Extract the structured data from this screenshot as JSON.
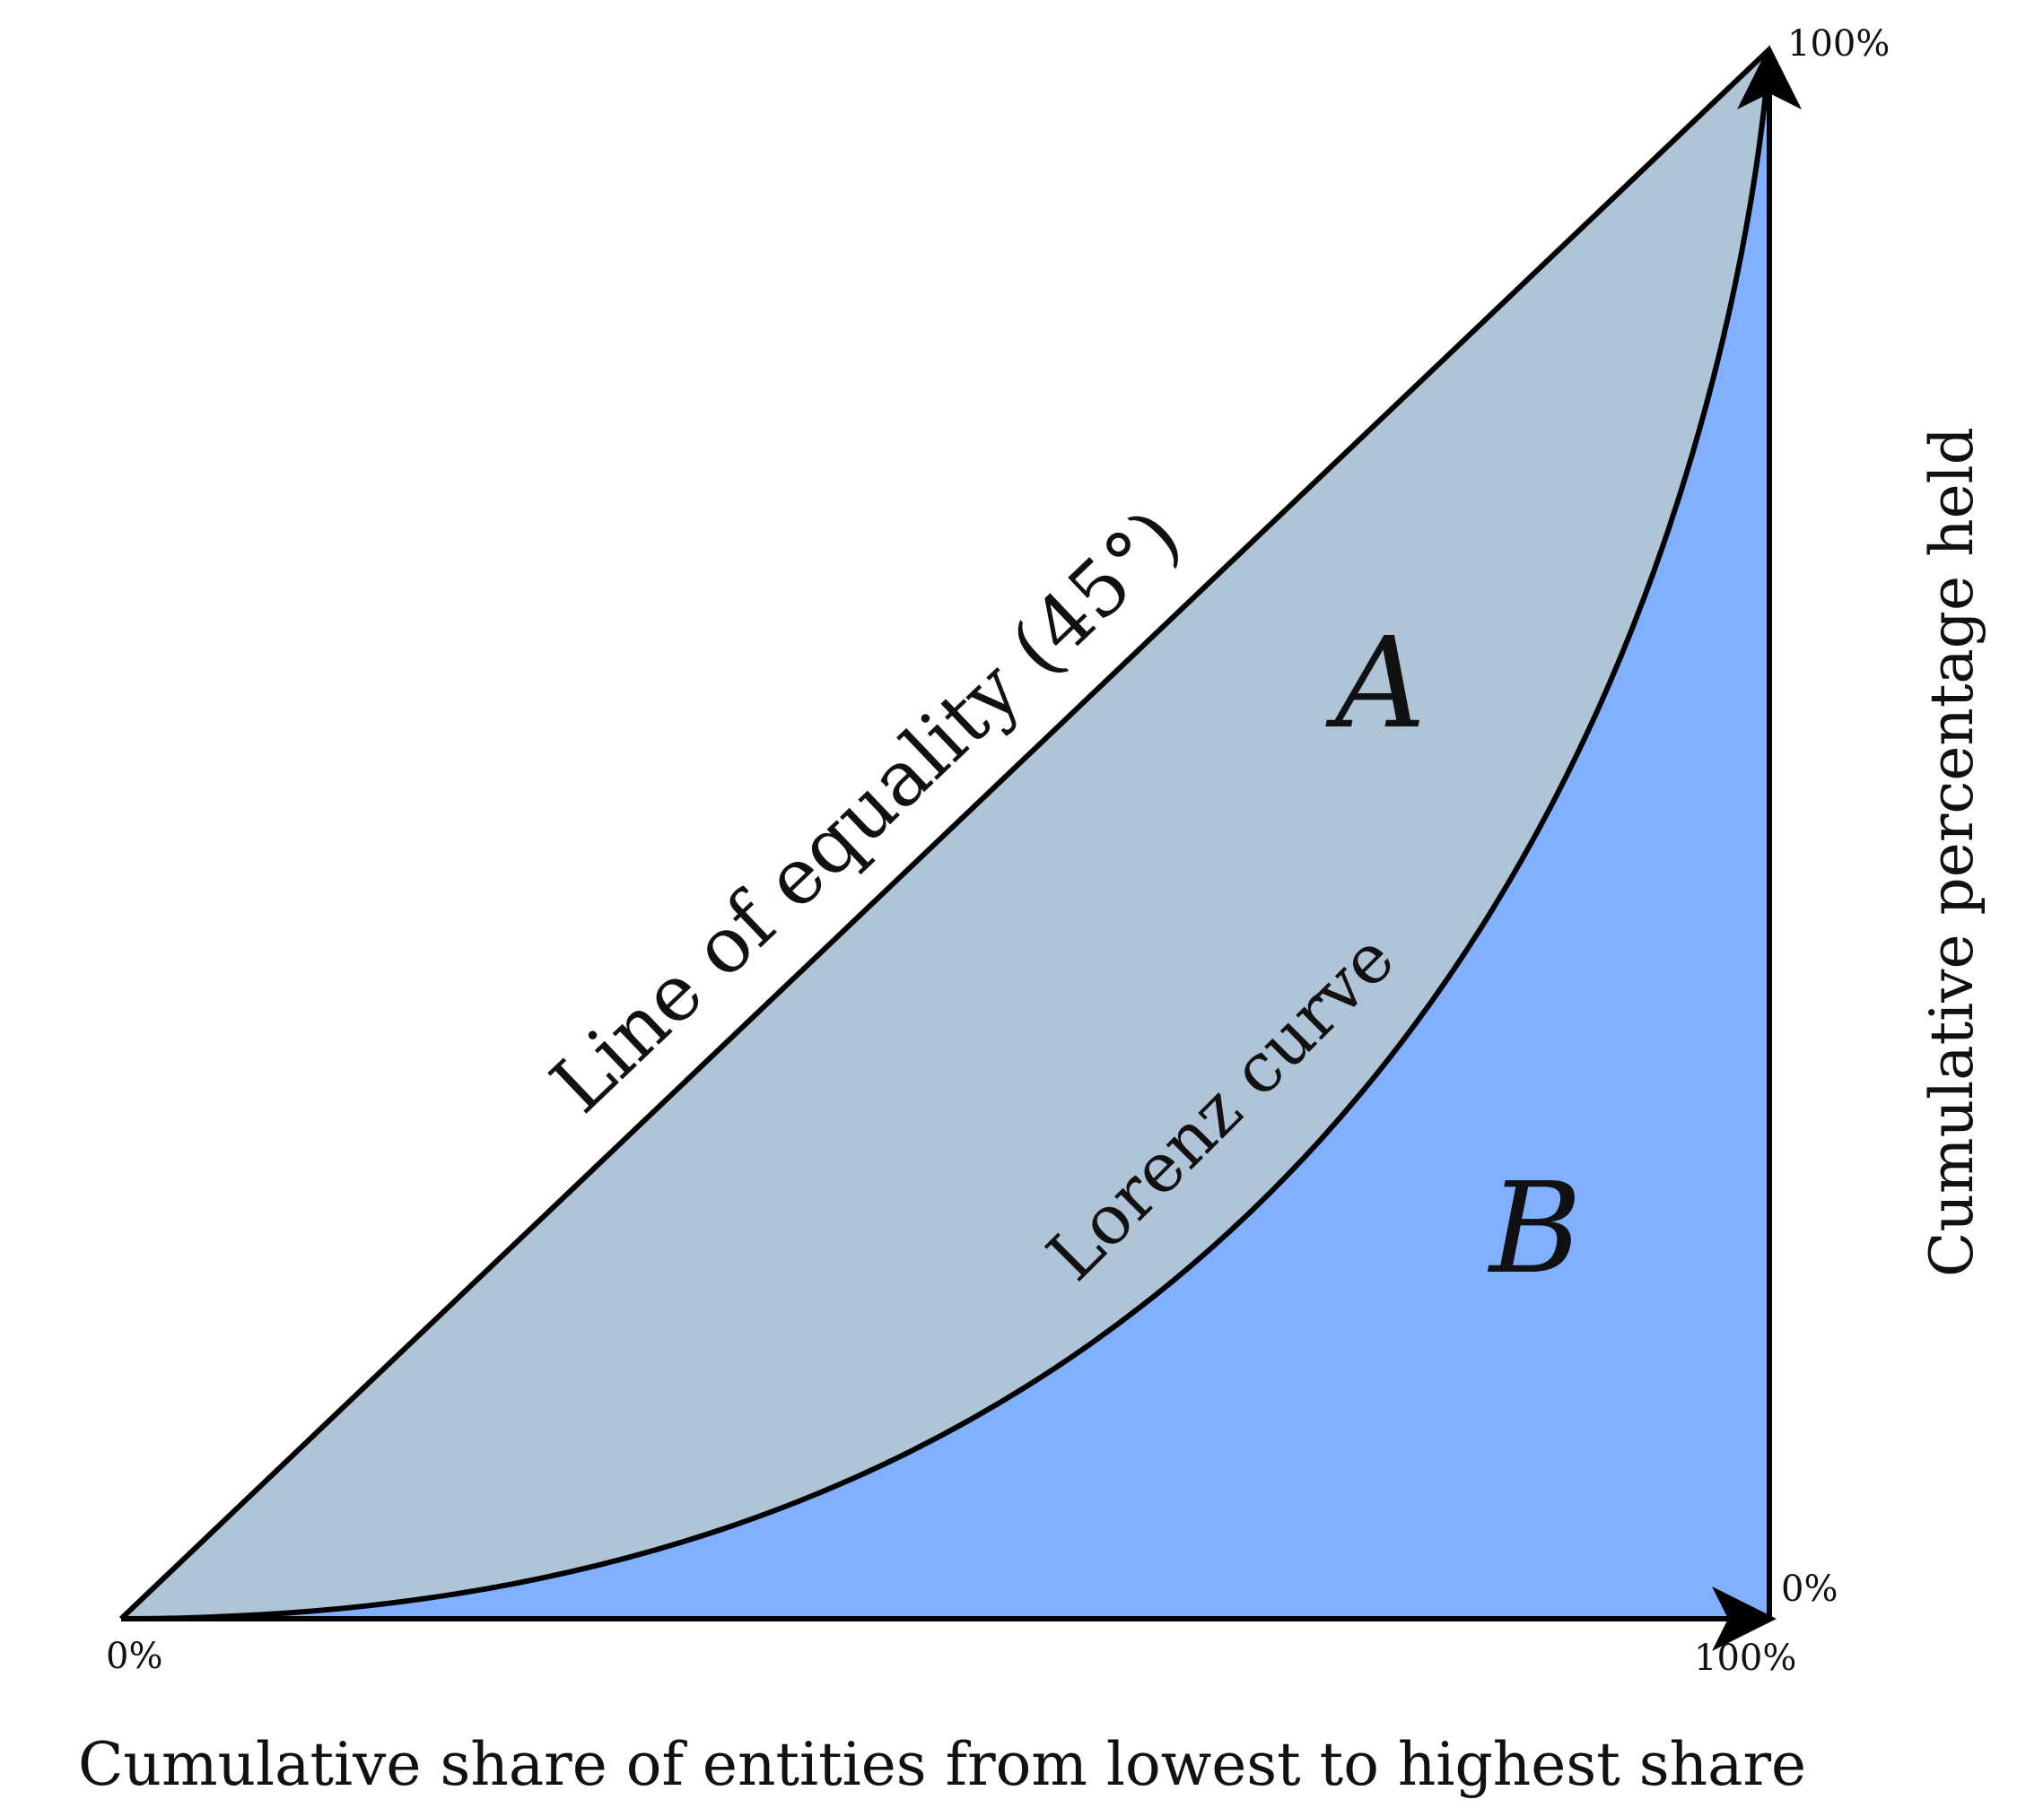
{
  "labels": {
    "equality_line": "Line of equality (45°)",
    "lorenz_curve": "Lorenz curve",
    "region_a": "A",
    "region_b": "B",
    "x_axis": "Cumulative share of entities from lowest to highest share",
    "y_axis": "Cumulative percentage held",
    "origin": "0%",
    "x_end": "100%",
    "y_top": "100%",
    "y_bottom": "0%"
  },
  "colors": {
    "region_a": "#b0c4d8",
    "region_b": "#80b0ff",
    "lines": "#000000"
  }
}
